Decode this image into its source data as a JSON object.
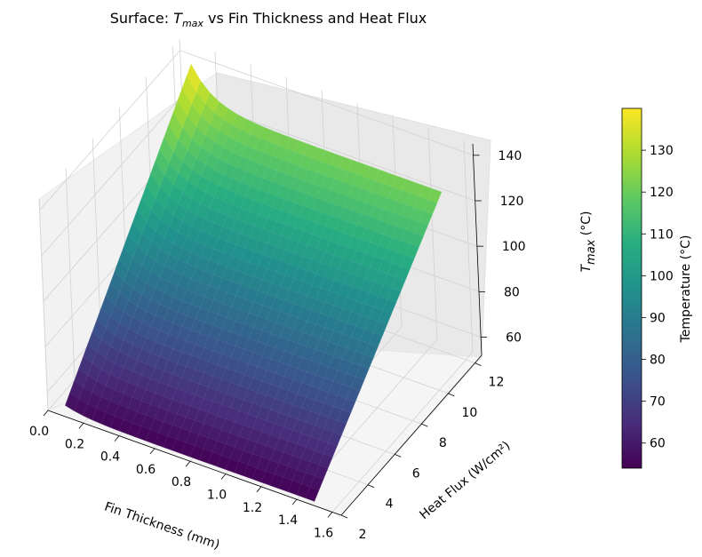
{
  "chart_data": {
    "type": "surface",
    "title": {
      "prefix": "Surface: ",
      "symbol": "T",
      "subscript": "max",
      "suffix": " vs Fin Thickness and Heat Flux"
    },
    "xlabel": "Fin Thickness (mm)",
    "ylabel": "Heat Flux (W/cm²)",
    "zlabel": {
      "symbol": "T",
      "subscript": "max",
      "suffix": " (°C)"
    },
    "xlim": [
      0.0,
      1.65
    ],
    "ylim": [
      2,
      12.5
    ],
    "zlim": [
      52,
      145
    ],
    "x_ticks": [
      "0.0",
      "0.2",
      "0.4",
      "0.6",
      "0.8",
      "1.0",
      "1.2",
      "1.4",
      "1.6"
    ],
    "y_ticks": [
      "2",
      "4",
      "6",
      "8",
      "10",
      "12"
    ],
    "z_ticks": [
      "60",
      "80",
      "100",
      "120",
      "140"
    ],
    "x_range": [
      0.1,
      1.5
    ],
    "y_range": [
      2,
      12
    ],
    "surface_corners": {
      "low_thickness_low_flux": 57,
      "high_thickness_low_flux": 54,
      "low_thickness_high_flux": 140,
      "high_thickness_high_flux": 123
    },
    "colormap": "viridis",
    "colorbar": {
      "label": "Temperature (°C)",
      "ticks": [
        "60",
        "70",
        "80",
        "90",
        "100",
        "110",
        "120",
        "130"
      ],
      "range": [
        54,
        140
      ]
    }
  }
}
